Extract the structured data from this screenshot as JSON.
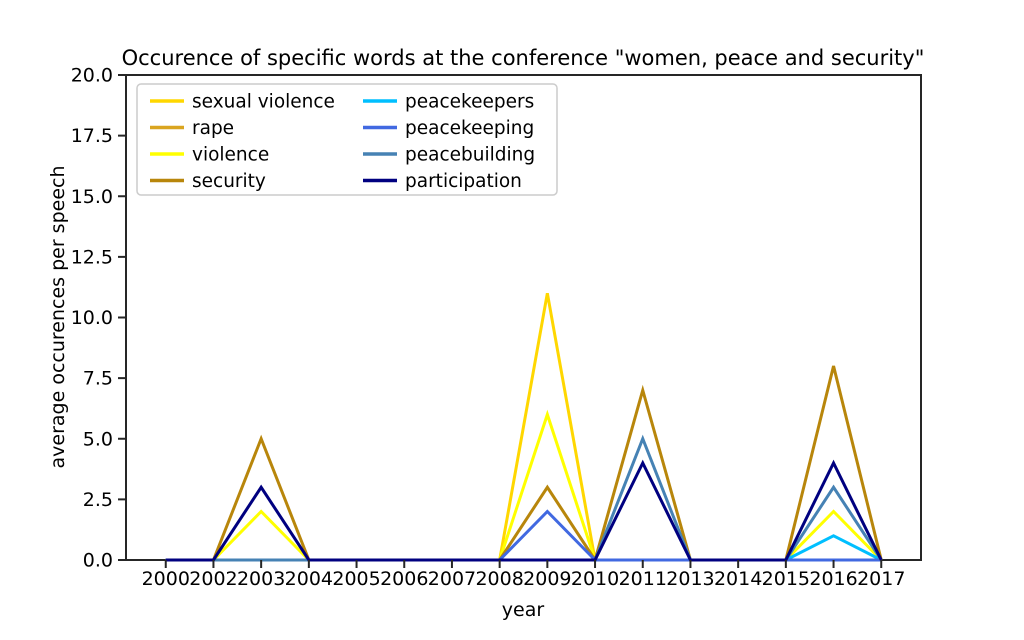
{
  "chart_data": {
    "type": "line",
    "title": "Occurence of specific words at the conference \"women, peace and security\"",
    "xlabel": "year",
    "ylabel": "average occurences per speech",
    "categories": [
      "2000",
      "2002",
      "2003",
      "2004",
      "2005",
      "2006",
      "2007",
      "2008",
      "2009",
      "2010",
      "2011",
      "2013",
      "2014",
      "2015",
      "2016",
      "2017"
    ],
    "ylim": [
      0,
      20
    ],
    "yticks": [
      0,
      2.5,
      5,
      7.5,
      10,
      12.5,
      15,
      17.5,
      20
    ],
    "ytick_labels": [
      "0.0",
      "2.5",
      "5.0",
      "7.5",
      "10.0",
      "12.5",
      "15.0",
      "17.5",
      "20.0"
    ],
    "grid": false,
    "legend_position": "upper-left",
    "legend_columns": 2,
    "colors": {
      "spine": "#262626",
      "legend_border": "#cccccc",
      "background": "#ffffff"
    },
    "series": [
      {
        "name": "sexual violence",
        "color": "#FFD700",
        "values": [
          0,
          0,
          0,
          0,
          0,
          0,
          0,
          0,
          11,
          0,
          0,
          0,
          0,
          0,
          0,
          0
        ]
      },
      {
        "name": "rape",
        "color": "#DAA520",
        "values": [
          0,
          0,
          0,
          0,
          0,
          0,
          0,
          0,
          0,
          0,
          0,
          0,
          0,
          0,
          0,
          0
        ]
      },
      {
        "name": "violence",
        "color": "#FFFF00",
        "values": [
          0,
          0,
          2,
          0,
          0,
          0,
          0,
          0,
          6,
          0,
          0,
          0,
          0,
          0,
          2,
          0
        ]
      },
      {
        "name": "security",
        "color": "#B8860B",
        "values": [
          0,
          0,
          5,
          0,
          0,
          0,
          0,
          0,
          3,
          0,
          7,
          0,
          0,
          0,
          8,
          0
        ]
      },
      {
        "name": "peacekeepers",
        "color": "#00BFFF",
        "values": [
          0,
          0,
          0,
          0,
          0,
          0,
          0,
          0,
          0,
          0,
          0,
          0,
          0,
          0,
          1,
          0
        ]
      },
      {
        "name": "peacekeeping",
        "color": "#4169E1",
        "values": [
          0,
          0,
          0,
          0,
          0,
          0,
          0,
          0,
          2,
          0,
          0,
          0,
          0,
          0,
          0,
          0
        ]
      },
      {
        "name": "peacebuilding",
        "color": "#4682B4",
        "values": [
          0,
          0,
          0,
          0,
          0,
          0,
          0,
          0,
          0,
          0,
          5,
          0,
          0,
          0,
          3,
          0
        ]
      },
      {
        "name": "participation",
        "color": "#000080",
        "values": [
          0,
          0,
          3,
          0,
          0,
          0,
          0,
          0,
          0,
          0,
          4,
          0,
          0,
          0,
          4,
          0
        ]
      }
    ]
  }
}
